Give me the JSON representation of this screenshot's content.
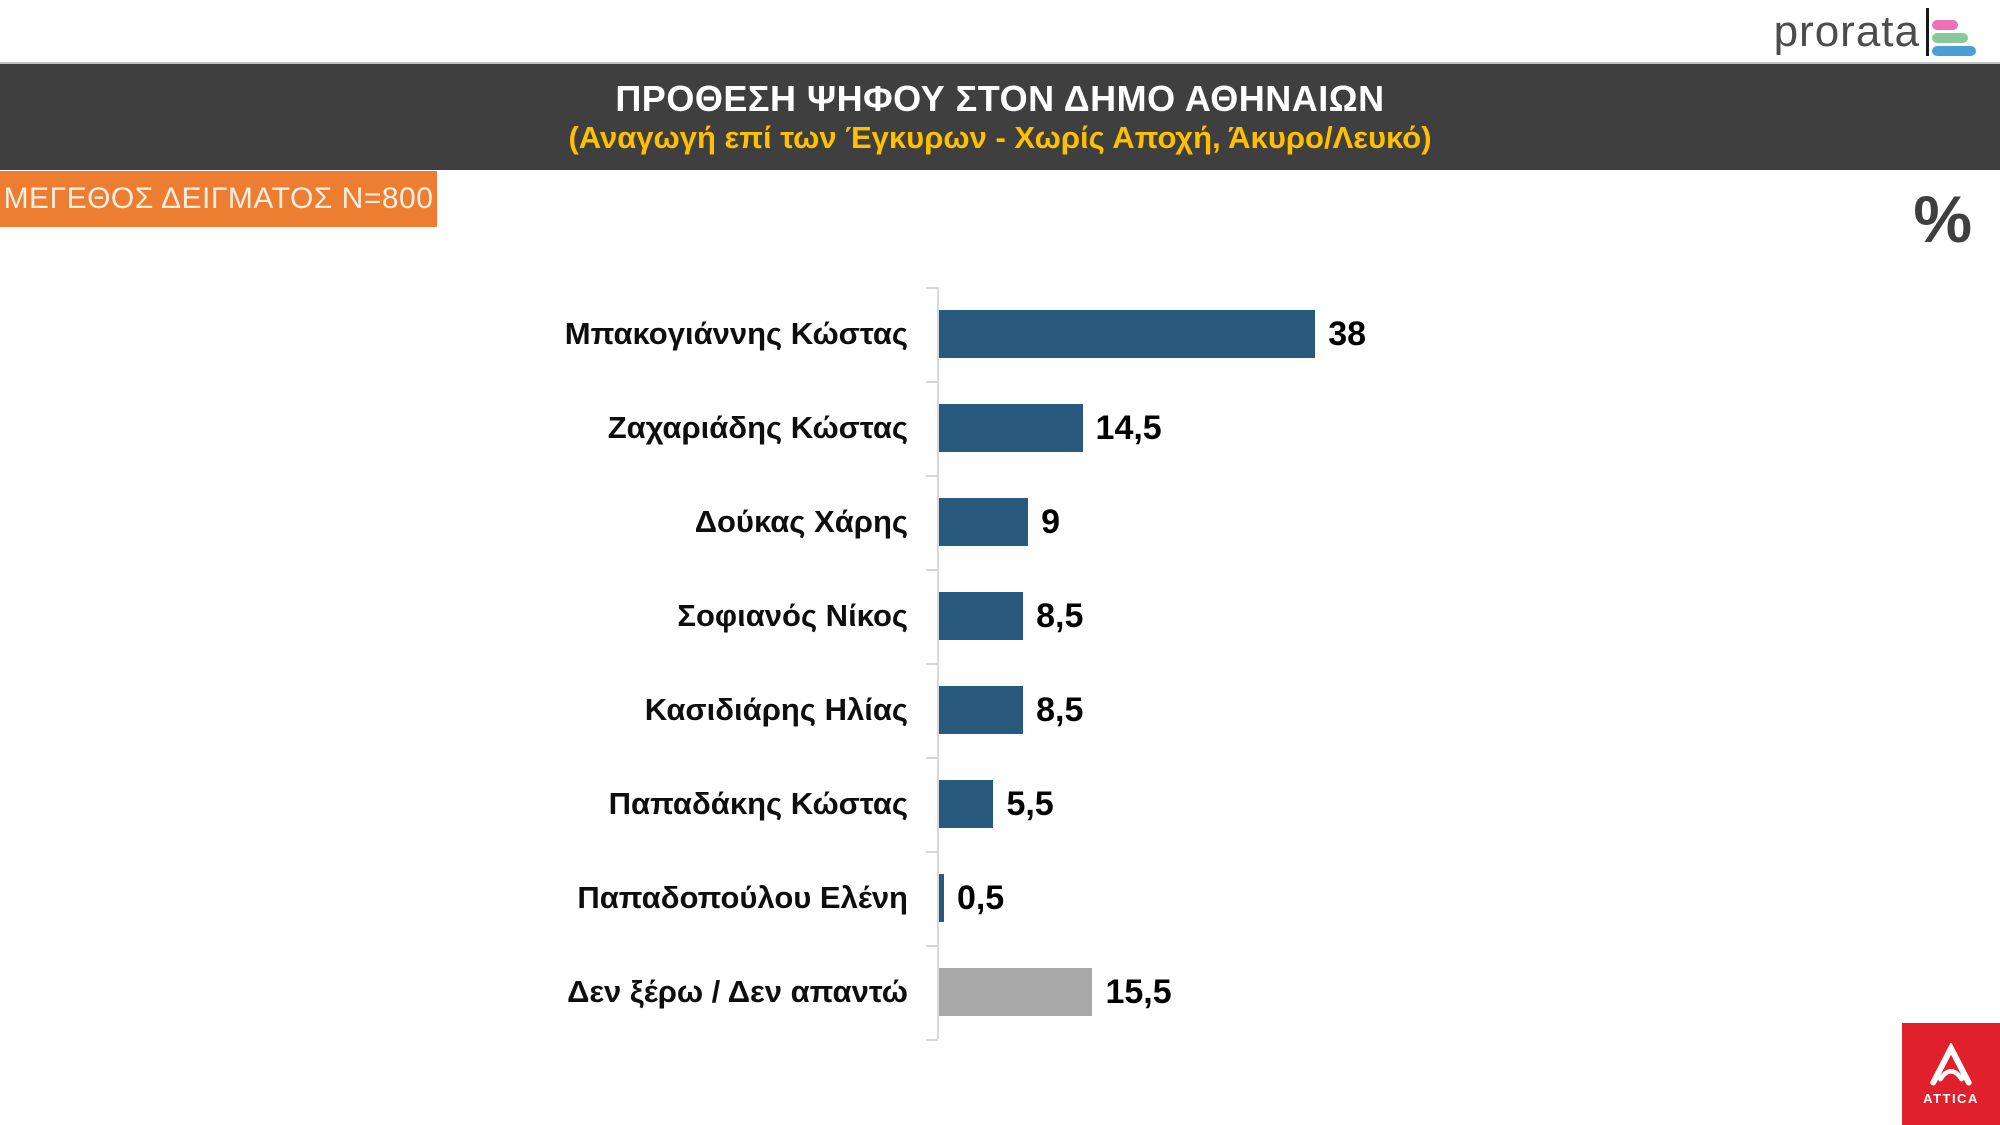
{
  "brand": {
    "name": "prorata",
    "icon_bar_colors": [
      "#ED72B4",
      "#87C99C",
      "#4C9ED6"
    ]
  },
  "header": {
    "title": "ΠΡΟΘΕΣΗ ΨΗΦΟΥ ΣΤΟΝ ΔΗΜΟ ΑΘΗΝΑΙΩΝ",
    "subtitle": "(Αναγωγή επί των Έγκυρων - Χωρίς Αποχή, Άκυρο/Λευκό)",
    "background": "#3F3F3F",
    "title_color": "#FFFFFF",
    "subtitle_color": "#FFC000"
  },
  "sample": {
    "label": "ΜΕΓΕΘΟΣ ΔΕΙΓΜΑΤΟΣ Ν=800",
    "background": "#ED7D31"
  },
  "percent_symbol": "%",
  "chart_data": {
    "type": "bar",
    "orientation": "horizontal",
    "unit": "percent",
    "categories": [
      "Μπακογιάννης Κώστας",
      "Ζαχαριάδης Κώστας",
      "Δούκας Χάρης",
      "Σοφιανός Νίκος",
      "Κασιδιάρης Ηλίας",
      "Παπαδάκης Κώστας",
      "Παπαδοπούλου Ελένη",
      "Δεν ξέρω / Δεν απαντώ"
    ],
    "values": [
      38,
      14.5,
      9,
      8.5,
      8.5,
      5.5,
      0.5,
      15.5
    ],
    "value_labels": [
      "38",
      "14,5",
      "9",
      "8,5",
      "8,5",
      "5,5",
      "0,5",
      "15,5"
    ],
    "bar_colors": [
      "#295A7D",
      "#295A7D",
      "#295A7D",
      "#295A7D",
      "#295A7D",
      "#295A7D",
      "#295A7D",
      "#A8A8A8"
    ],
    "bar_color_default": "#295A7D",
    "bar_color_dk_dxa": "#A8A8A8",
    "axis": {
      "line_color": "#D9D9D9",
      "tick_color": "#D6D6D6",
      "grid": false,
      "value_axis_labels": "hidden"
    },
    "legend": "none",
    "xlim": [
      0,
      40
    ]
  },
  "attica_logo": {
    "text": "ATTICA",
    "background": "#E0202B"
  }
}
